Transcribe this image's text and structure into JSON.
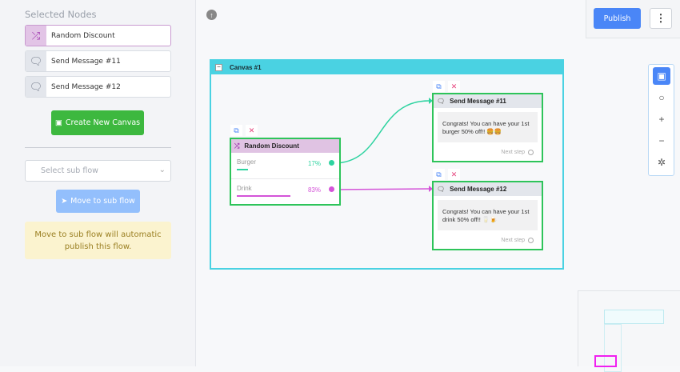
{
  "sidebar": {
    "selected_title": "Selected Nodes",
    "selected_nodes": [
      {
        "label": "Random Discount",
        "icon": "shuffle-icon"
      },
      {
        "label": "Send Message #11",
        "icon": "message-icon"
      },
      {
        "label": "Send Message #12",
        "icon": "message-icon"
      }
    ],
    "create_canvas": "Create New Canvas",
    "sub_flow_placeholder": "Select sub flow",
    "move_button": "Move to sub flow",
    "note": "Move to sub flow will automatic publish this flow."
  },
  "header": {
    "publish": "Publish",
    "more": "⋮"
  },
  "canvas": {
    "title": "Canvas #1",
    "random_discount": {
      "title": "Random Discount",
      "branches": [
        {
          "name": "Burger",
          "percent": "17%",
          "value": 17,
          "color": "#2ed3a0"
        },
        {
          "name": "Drink",
          "percent": "83%",
          "value": 83,
          "color": "#d454d8"
        }
      ]
    },
    "messages": [
      {
        "title": "Send Message #11",
        "text": "Congrats! You can have your 1st burger 50% off!! 🍔🍔",
        "next": "Next step"
      },
      {
        "title": "Send Message #12",
        "text": "Congrats! You can have your 1st drink 50% off!! 🥛🍺",
        "next": "Next step"
      }
    ]
  },
  "colors": {
    "node_border": "#2ec45a",
    "canvas": "#4ad2e2",
    "primary": "#4a86f7",
    "green": "#3db83f"
  }
}
